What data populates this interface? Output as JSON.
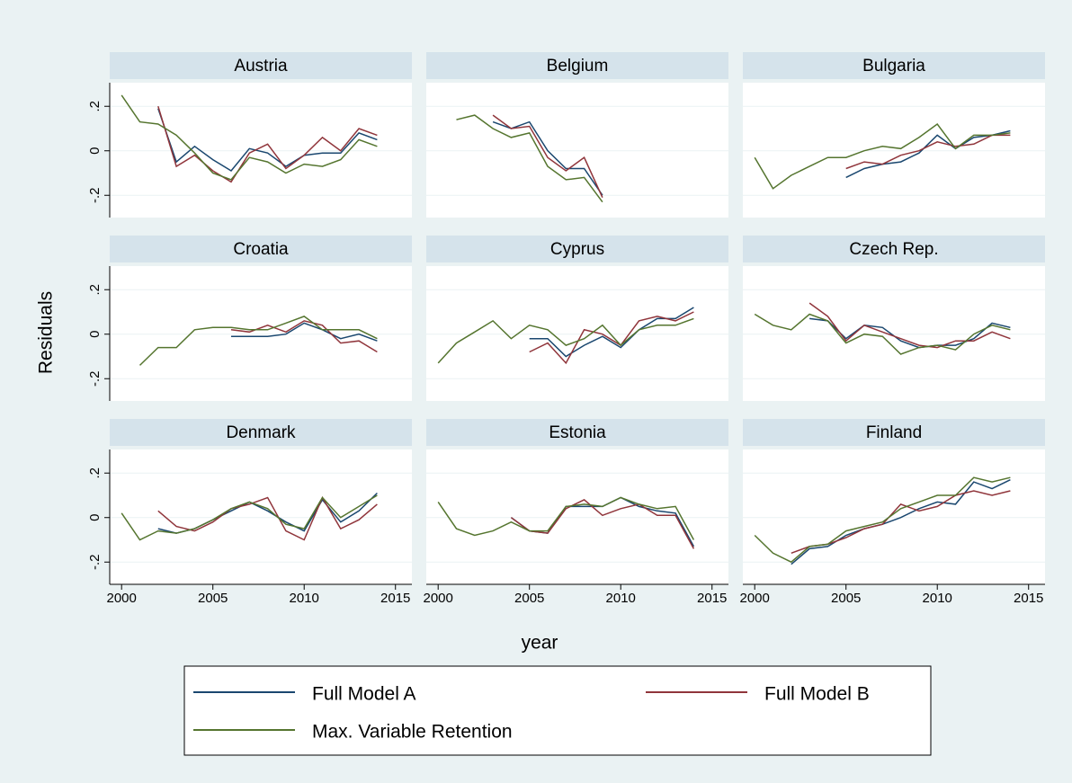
{
  "chart_data": {
    "type": "line",
    "xlabel": "year",
    "ylabel": "Residuals",
    "x": [
      2000,
      2001,
      2002,
      2003,
      2004,
      2005,
      2006,
      2007,
      2008,
      2009,
      2010,
      2011,
      2012,
      2013,
      2014
    ],
    "xlim": [
      1999.35,
      2015.9
    ],
    "xticks": [
      2000,
      2005,
      2010,
      2015
    ],
    "ylim": [
      -0.3,
      0.306
    ],
    "yticks": [
      {
        "value": 0.2,
        "label": ".2"
      },
      {
        "value": 0,
        "label": "0"
      },
      {
        "value": -0.2,
        "label": "-.2"
      }
    ],
    "grid": true,
    "series": [
      {
        "name": "Full Model A",
        "color": "#1a476f"
      },
      {
        "name": "Full Model B",
        "color": "#90353b"
      },
      {
        "name": "Max. Variable Retention",
        "color": "#55752f"
      }
    ],
    "panels": [
      {
        "title": "Austria",
        "values": [
          [
            null,
            null,
            0.19,
            -0.05,
            0.02,
            -0.04,
            -0.09,
            0.01,
            -0.01,
            -0.07,
            -0.02,
            -0.01,
            -0.01,
            0.08,
            0.05
          ],
          [
            null,
            null,
            0.2,
            -0.07,
            -0.02,
            -0.09,
            -0.14,
            -0.01,
            0.03,
            -0.08,
            -0.02,
            0.06,
            0.0,
            0.1,
            0.07
          ],
          [
            0.25,
            0.13,
            0.12,
            0.07,
            -0.01,
            -0.1,
            -0.13,
            -0.03,
            -0.05,
            -0.1,
            -0.06,
            -0.07,
            -0.04,
            0.05,
            0.02
          ]
        ]
      },
      {
        "title": "Belgium",
        "values": [
          [
            null,
            null,
            null,
            0.13,
            0.1,
            0.13,
            0.0,
            -0.08,
            -0.08,
            -0.2,
            null,
            null,
            null,
            null,
            null
          ],
          [
            null,
            null,
            null,
            0.16,
            0.1,
            0.11,
            -0.03,
            -0.09,
            -0.03,
            -0.21,
            null,
            null,
            null,
            null,
            null
          ],
          [
            null,
            0.14,
            0.16,
            0.1,
            0.06,
            0.08,
            -0.07,
            -0.13,
            -0.12,
            -0.23,
            null,
            null,
            null,
            null,
            null
          ]
        ]
      },
      {
        "title": "Bulgaria",
        "values": [
          [
            null,
            null,
            null,
            null,
            null,
            -0.12,
            -0.08,
            -0.06,
            -0.05,
            -0.01,
            0.07,
            0.01,
            0.06,
            0.07,
            0.09
          ],
          [
            null,
            null,
            null,
            null,
            null,
            -0.08,
            -0.05,
            -0.06,
            -0.02,
            0.0,
            0.04,
            0.02,
            0.03,
            0.07,
            0.07
          ],
          [
            -0.03,
            -0.17,
            -0.11,
            -0.07,
            -0.03,
            -0.03,
            0.0,
            0.02,
            0.01,
            0.06,
            0.12,
            0.01,
            0.07,
            0.07,
            0.08
          ]
        ]
      },
      {
        "title": "Croatia",
        "values": [
          [
            null,
            null,
            null,
            null,
            null,
            null,
            -0.01,
            -0.01,
            -0.01,
            0.0,
            0.05,
            0.02,
            -0.02,
            0.0,
            -0.03
          ],
          [
            null,
            null,
            null,
            null,
            null,
            null,
            0.02,
            0.01,
            0.04,
            0.01,
            0.06,
            0.04,
            -0.04,
            -0.03,
            -0.08
          ],
          [
            null,
            -0.14,
            -0.06,
            -0.06,
            0.02,
            0.03,
            0.03,
            0.02,
            0.02,
            0.05,
            0.08,
            0.02,
            0.02,
            0.02,
            -0.02
          ]
        ]
      },
      {
        "title": "Cyprus",
        "values": [
          [
            null,
            null,
            null,
            null,
            null,
            -0.02,
            -0.02,
            -0.1,
            -0.05,
            -0.01,
            -0.06,
            0.02,
            0.07,
            0.07,
            0.12
          ],
          [
            null,
            null,
            null,
            null,
            null,
            -0.08,
            -0.04,
            -0.13,
            0.02,
            0.0,
            -0.05,
            0.06,
            0.08,
            0.06,
            0.1
          ],
          [
            -0.13,
            -0.04,
            0.01,
            0.06,
            -0.02,
            0.04,
            0.02,
            -0.05,
            -0.02,
            0.04,
            -0.05,
            0.02,
            0.04,
            0.04,
            0.07
          ]
        ]
      },
      {
        "title": "Czech Rep.",
        "values": [
          [
            null,
            null,
            null,
            0.07,
            0.06,
            -0.02,
            0.04,
            0.03,
            -0.03,
            -0.06,
            -0.05,
            -0.05,
            -0.02,
            0.05,
            0.03
          ],
          [
            null,
            null,
            null,
            0.14,
            0.08,
            -0.03,
            0.04,
            0.01,
            -0.02,
            -0.05,
            -0.06,
            -0.03,
            -0.03,
            0.01,
            -0.02
          ],
          [
            0.09,
            0.04,
            0.02,
            0.09,
            0.06,
            -0.04,
            0.0,
            -0.01,
            -0.09,
            -0.06,
            -0.05,
            -0.07,
            0.0,
            0.04,
            0.02
          ]
        ]
      },
      {
        "title": "Denmark",
        "values": [
          [
            null,
            null,
            -0.05,
            -0.07,
            -0.05,
            -0.01,
            0.03,
            0.07,
            0.03,
            -0.02,
            -0.06,
            0.08,
            -0.02,
            0.03,
            0.11
          ],
          [
            null,
            null,
            0.03,
            -0.04,
            -0.06,
            -0.02,
            0.04,
            0.06,
            0.09,
            -0.06,
            -0.1,
            0.09,
            -0.05,
            -0.01,
            0.06
          ],
          [
            0.02,
            -0.1,
            -0.06,
            -0.07,
            -0.05,
            -0.01,
            0.04,
            0.07,
            0.04,
            -0.03,
            -0.05,
            0.09,
            0.0,
            0.05,
            0.1
          ]
        ]
      },
      {
        "title": "Estonia",
        "values": [
          [
            null,
            null,
            null,
            null,
            0.0,
            -0.06,
            -0.07,
            0.05,
            0.05,
            0.05,
            0.09,
            0.05,
            0.03,
            0.02,
            -0.13
          ],
          [
            null,
            null,
            null,
            null,
            0.0,
            -0.06,
            -0.07,
            0.04,
            0.08,
            0.01,
            0.04,
            0.06,
            0.01,
            0.01,
            -0.14
          ],
          [
            0.07,
            -0.05,
            -0.08,
            -0.06,
            -0.02,
            -0.06,
            -0.06,
            0.05,
            0.06,
            0.05,
            0.09,
            0.06,
            0.04,
            0.05,
            -0.1
          ]
        ]
      },
      {
        "title": "Finland",
        "values": [
          [
            null,
            null,
            -0.21,
            -0.14,
            -0.13,
            -0.08,
            -0.05,
            -0.03,
            0.0,
            0.04,
            0.07,
            0.06,
            0.16,
            0.13,
            0.17
          ],
          [
            null,
            null,
            -0.16,
            -0.13,
            -0.12,
            -0.09,
            -0.05,
            -0.03,
            0.06,
            0.03,
            0.05,
            0.1,
            0.12,
            0.1,
            0.12
          ],
          [
            -0.08,
            -0.16,
            -0.2,
            -0.13,
            -0.12,
            -0.06,
            -0.04,
            -0.02,
            0.04,
            0.07,
            0.1,
            0.1,
            0.18,
            0.16,
            0.18
          ]
        ]
      }
    ]
  }
}
